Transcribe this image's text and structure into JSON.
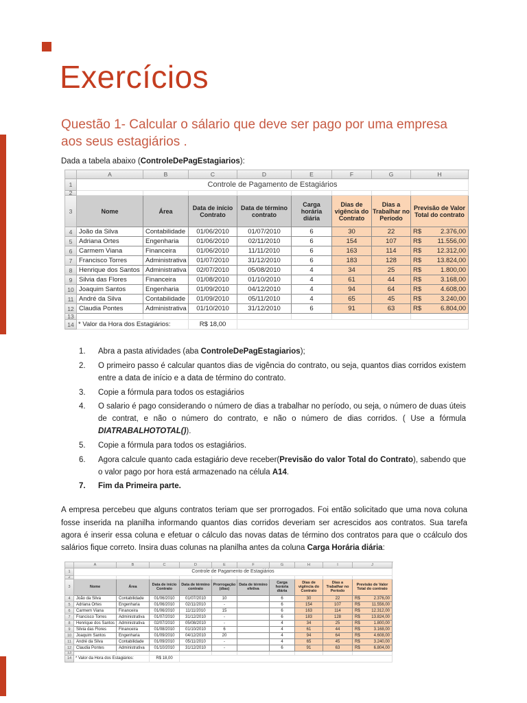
{
  "colors": {
    "title_red": "#C43D20",
    "heading_red": "#C75B44",
    "orange_cell": "#FBD5B5",
    "gray_header": "#CECECE"
  },
  "page": {
    "title": "Exercícios"
  },
  "question": {
    "heading": "Questão 1- Calcular o sálario que deve ser pago por uma empresa aos seus estagiários ."
  },
  "intro": {
    "segs": [
      {
        "t": "Dada a tabela abaixo ("
      },
      {
        "t": "ControleDePagEstagiarios",
        "b": true
      },
      {
        "t": "):"
      }
    ]
  },
  "table1": {
    "name": "Controle de Pagamento de Estagiários",
    "col_letters": [
      "A",
      "B",
      "C",
      "D",
      "E",
      "F",
      "G",
      "H"
    ],
    "headers": [
      "Nome",
      "Área",
      "Data de início Contrato",
      "Data de término contrato",
      "Carga horária diária",
      "Dias de vigência do Contrato",
      "Dias a Trabalhar no Período",
      "Previsão de Valor Total do contrato"
    ],
    "highlight_start_col": 5,
    "rows": [
      {
        "cells": [
          "João da Silva",
          "Contabilidade",
          "01/06/2010",
          "01/07/2010",
          "6",
          "30",
          "22"
        ],
        "cur": "R$",
        "amount": "2.376,00"
      },
      {
        "cells": [
          "Adriana Ortes",
          "Engenharia",
          "01/06/2010",
          "02/11/2010",
          "6",
          "154",
          "107"
        ],
        "cur": "R$",
        "amount": "11.556,00"
      },
      {
        "cells": [
          "Carmem Viana",
          "Financeira",
          "01/06/2010",
          "11/11/2010",
          "6",
          "163",
          "114"
        ],
        "cur": "R$",
        "amount": "12.312,00"
      },
      {
        "cells": [
          "Francisco Torres",
          "Administrativa",
          "01/07/2010",
          "31/12/2010",
          "6",
          "183",
          "128"
        ],
        "cur": "R$",
        "amount": "13.824,00"
      },
      {
        "cells": [
          "Henrique dos Santos",
          "Administrativa",
          "02/07/2010",
          "05/08/2010",
          "4",
          "34",
          "25"
        ],
        "cur": "R$",
        "amount": "1.800,00"
      },
      {
        "cells": [
          "Silvia das Flores",
          "Financeira",
          "01/08/2010",
          "01/10/2010",
          "4",
          "61",
          "44"
        ],
        "cur": "R$",
        "amount": "3.168,00"
      },
      {
        "cells": [
          "Joaquim Santos",
          "Engenharia",
          "01/09/2010",
          "04/12/2010",
          "4",
          "94",
          "64"
        ],
        "cur": "R$",
        "amount": "4.608,00"
      },
      {
        "cells": [
          "André da Silva",
          "Contabilidade",
          "01/09/2010",
          "05/11/2010",
          "4",
          "65",
          "45"
        ],
        "cur": "R$",
        "amount": "3.240,00"
      },
      {
        "cells": [
          "Claudia Pontes",
          "Administrativa",
          "01/10/2010",
          "31/12/2010",
          "6",
          "91",
          "63"
        ],
        "cur": "R$",
        "amount": "6.804,00"
      }
    ],
    "footer": {
      "label": "* Valor da Hora dos Estagiários:",
      "value": "R$ 18,00"
    }
  },
  "steps": {
    "items": [
      {
        "num": "1.",
        "segs": [
          {
            "t": "Abra a pasta atividades (aba "
          },
          {
            "t": "ControleDePagEstagiarios",
            "b": true
          },
          {
            "t": ");"
          }
        ]
      },
      {
        "num": "2.",
        "segs": [
          {
            "t": "O primeiro passo é calcular quantos dias de vigência do contrato, ou seja, quantos dias corridos existem entre a data de início e a data de término do contrato."
          }
        ]
      },
      {
        "num": "3.",
        "segs": [
          {
            "t": "Copie a fórmula para todos os estagiários"
          }
        ]
      },
      {
        "num": "4.",
        "segs": [
          {
            "t": "O salario é pago considerando o número de dias a trabalhar no período, ou seja, o número de duas úteis de contrat, e não o número do contrato, e não o número de dias corridos. ( Use a fórmula "
          },
          {
            "t": "DIATRABALHOTOTAL()",
            "b": true,
            "i": true
          },
          {
            "t": ")."
          }
        ]
      },
      {
        "num": "5.",
        "segs": [
          {
            "t": "Copie a fórmula para todos os estagiários."
          }
        ]
      },
      {
        "num": "6.",
        "segs": [
          {
            "t": "Agora calcule quanto cada estagiário deve receber("
          },
          {
            "t": "Previsão do valor Total do Contrato",
            "b": true
          },
          {
            "t": "), sabendo que o valor pago por hora está armazenado na célula "
          },
          {
            "t": "A14",
            "b": true
          },
          {
            "t": "."
          }
        ]
      },
      {
        "num": "7.",
        "bold": true,
        "segs": [
          {
            "t": "Fim da Primeira parte.",
            "b": true
          }
        ]
      }
    ]
  },
  "paragraph": {
    "segs": [
      {
        "t": "A empresa percebeu que alguns contratos teriam que ser prorrogados. Foi então solicitado que uma nova coluna fosse inserida na planilha informando quantos dias corridos deveriam ser acrescidos aos contratos. Sua tarefa agora é inserir essa coluna e efetuar o cálculo das novas datas de término dos contratos para que o ccálculo dos salários fique correto. Insira duas colunas na planilha antes da coluna "
      },
      {
        "t": "Carga Horária diária",
        "b": true
      },
      {
        "t": ":"
      }
    ]
  },
  "table2": {
    "name": "Controle de Pagamento de Estagiários",
    "col_letters": [
      "A",
      "B",
      "C",
      "D",
      "E",
      "F",
      "G",
      "H",
      "I",
      "J"
    ],
    "headers": [
      "Nome",
      "Área",
      "Data de início Contrato",
      "Data de término contrato",
      "Prorrogação (dias)",
      "Data de término efetiva",
      "Carga horária diária",
      "Dias de vigência do Contrato",
      "Dias a Trabalhar no Período",
      "Previsão de Valor Total do contrato"
    ],
    "highlight_start_col": 7,
    "rows": [
      {
        "cells": [
          "João da Silva",
          "Contabilidade",
          "01/06/2010",
          "01/07/2010",
          "10",
          "",
          "6",
          "30",
          "22"
        ],
        "cur": "R$",
        "amount": "2.376,00"
      },
      {
        "cells": [
          "Adriana Ortes",
          "Engenharia",
          "01/06/2010",
          "02/11/2010",
          "-",
          "",
          "6",
          "154",
          "107"
        ],
        "cur": "R$",
        "amount": "11.556,00"
      },
      {
        "cells": [
          "Carmem Viana",
          "Financeira",
          "01/06/2010",
          "11/11/2010",
          "15",
          "",
          "6",
          "163",
          "114"
        ],
        "cur": "R$",
        "amount": "12.312,00"
      },
      {
        "cells": [
          "Francisco Torres",
          "Administrativa",
          "01/07/2010",
          "31/12/2010",
          "-",
          "",
          "6",
          "183",
          "128"
        ],
        "cur": "R$",
        "amount": "13.824,00"
      },
      {
        "cells": [
          "Henrique dos Santos",
          "Administrativa",
          "02/07/2010",
          "05/08/2010",
          "-",
          "",
          "4",
          "34",
          "25"
        ],
        "cur": "R$",
        "amount": "1.800,00"
      },
      {
        "cells": [
          "Silvia das Flores",
          "Financeira",
          "01/08/2010",
          "01/10/2010",
          "6",
          "",
          "4",
          "61",
          "44"
        ],
        "cur": "R$",
        "amount": "3.168,00"
      },
      {
        "cells": [
          "Joaquim Santos",
          "Engenharia",
          "01/09/2010",
          "04/12/2010",
          "20",
          "",
          "4",
          "94",
          "64"
        ],
        "cur": "R$",
        "amount": "4.608,00"
      },
      {
        "cells": [
          "André da Silva",
          "Contabilidade",
          "01/09/2010",
          "05/11/2010",
          "-",
          "",
          "4",
          "65",
          "45"
        ],
        "cur": "R$",
        "amount": "3.240,00"
      },
      {
        "cells": [
          "Claudia Pontes",
          "Administrativa",
          "01/10/2010",
          "31/12/2010",
          "-",
          "",
          "6",
          "91",
          "63"
        ],
        "cur": "R$",
        "amount": "6.804,00"
      }
    ],
    "footer": {
      "label": "* Valor da Hora dos Estagiários:",
      "value": "R$ 18,00"
    }
  }
}
